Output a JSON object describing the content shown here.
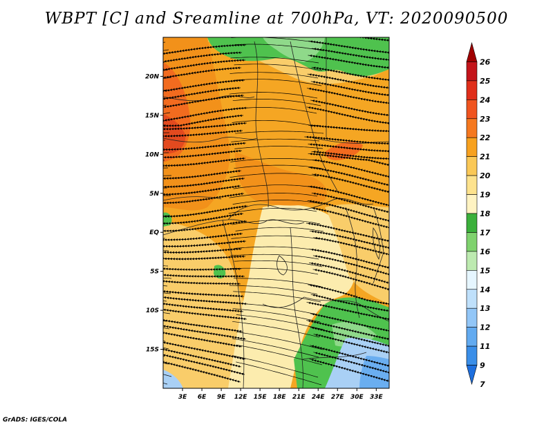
{
  "title": "WBPT [C] and Sreamline at 700hPa, VT: 2020090500",
  "credit": "GrADS: IGES/COLA",
  "map": {
    "lon_range": [
      0,
      35
    ],
    "lat_range": [
      -20,
      25
    ],
    "lon_ticks": [
      "3E",
      "6E",
      "9E",
      "12E",
      "15E",
      "18E",
      "21E",
      "24E",
      "27E",
      "30E",
      "33E"
    ],
    "lat_ticks": [
      "20N",
      "15N",
      "10N",
      "5N",
      "EQ",
      "5S",
      "10S",
      "15S"
    ],
    "colors": {
      "c_gt24": "#e34a1f",
      "c_23": "#f26b1f",
      "c_22": "#f2911a",
      "c_21": "#f5a623",
      "c_20": "#f9cd6a",
      "c_19": "#fcecae",
      "c_17": "#4fc24e",
      "c_16": "#8fd98a",
      "c_14": "#a9d0f5",
      "c_12": "#6aaef0"
    }
  },
  "colorbar": {
    "labels": [
      "26",
      "25",
      "24",
      "23",
      "22",
      "21",
      "20",
      "19",
      "18",
      "17",
      "16",
      "15",
      "14",
      "13",
      "12",
      "11",
      "9",
      "7"
    ],
    "colors": [
      "#a00000",
      "#c4141a",
      "#e02e1a",
      "#f0541f",
      "#f5781f",
      "#f7a11f",
      "#fac857",
      "#fde28d",
      "#fff3c2",
      "#3bb03b",
      "#7fd26e",
      "#bdeab0",
      "#e6f6ff",
      "#bfe0fb",
      "#92c6f7",
      "#62aaf0",
      "#3a8ee8",
      "#1e6fde"
    ]
  }
}
